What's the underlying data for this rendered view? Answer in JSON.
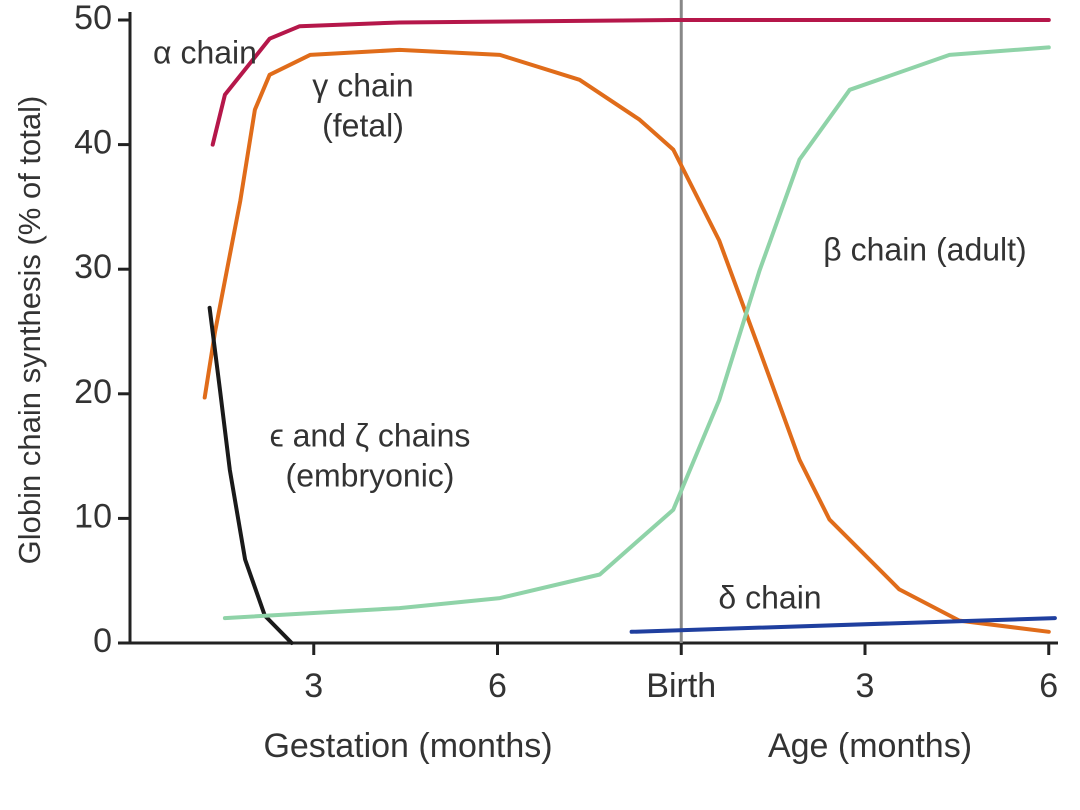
{
  "chart_data": {
    "type": "line",
    "ylabel": "Globin chain synthesis (% of total)",
    "xlabels": [
      "Gestation (months)",
      "Age (months)"
    ],
    "xlim": [
      0,
      15.2
    ],
    "ylim": [
      0,
      50
    ],
    "xticks": [
      3,
      6,
      {
        "value": 9,
        "label": "Birth"
      },
      {
        "value": 12,
        "label": "3"
      },
      {
        "value": 15,
        "label": "6"
      }
    ],
    "yticks": [
      0,
      10,
      20,
      30,
      40,
      50
    ],
    "series": [
      {
        "name": "α chain",
        "color": "#b5174a",
        "x": [
          1.35,
          1.55,
          2.28,
          2.77,
          4.4,
          8.9,
          15
        ],
        "values": [
          40,
          44,
          48.5,
          49.5,
          49.8,
          50,
          50
        ]
      },
      {
        "name": "γ chain (fetal)",
        "color": "#e06c1a",
        "x": [
          1.22,
          1.39,
          1.8,
          2.04,
          2.28,
          2.94,
          4.4,
          6.04,
          7.34,
          8.32,
          8.87,
          9.62,
          10.28,
          10.93,
          11.42,
          12.56,
          13.54,
          15
        ],
        "values": [
          19.7,
          25,
          35.5,
          42.8,
          45.6,
          47.2,
          47.6,
          47.2,
          45.2,
          42,
          39.6,
          32.3,
          23.5,
          14.7,
          9.9,
          4.3,
          1.8,
          0.9
        ]
      },
      {
        "name": "ε and ζ chains (embryonic)",
        "color": "#1a1a1a",
        "x": [
          1.3,
          1.47,
          1.63,
          1.88,
          2.2,
          2.64
        ],
        "values": [
          26.9,
          20.3,
          13.9,
          6.7,
          2.2,
          0
        ]
      },
      {
        "name": "β chain (adult)",
        "color": "#8fd3a8",
        "x": [
          1.55,
          4.4,
          6.04,
          7.67,
          8.87,
          9.62,
          10.28,
          10.93,
          11.75,
          13.38,
          15
        ],
        "values": [
          2.0,
          2.8,
          3.6,
          5.5,
          10.7,
          19.5,
          29.9,
          38.8,
          44.4,
          47.2,
          47.8
        ]
      },
      {
        "name": "δ chain",
        "color": "#1f3f9f",
        "x": [
          8.19,
          15.1
        ],
        "values": [
          0.9,
          2.0
        ]
      }
    ],
    "annotations": [
      [
        "α chain"
      ],
      [
        "γ chain",
        "(fetal)"
      ],
      [
        "ϵ and ζ chains",
        "(embryonic)"
      ],
      [
        "β chain (adult)"
      ],
      [
        "δ chain"
      ]
    ]
  }
}
